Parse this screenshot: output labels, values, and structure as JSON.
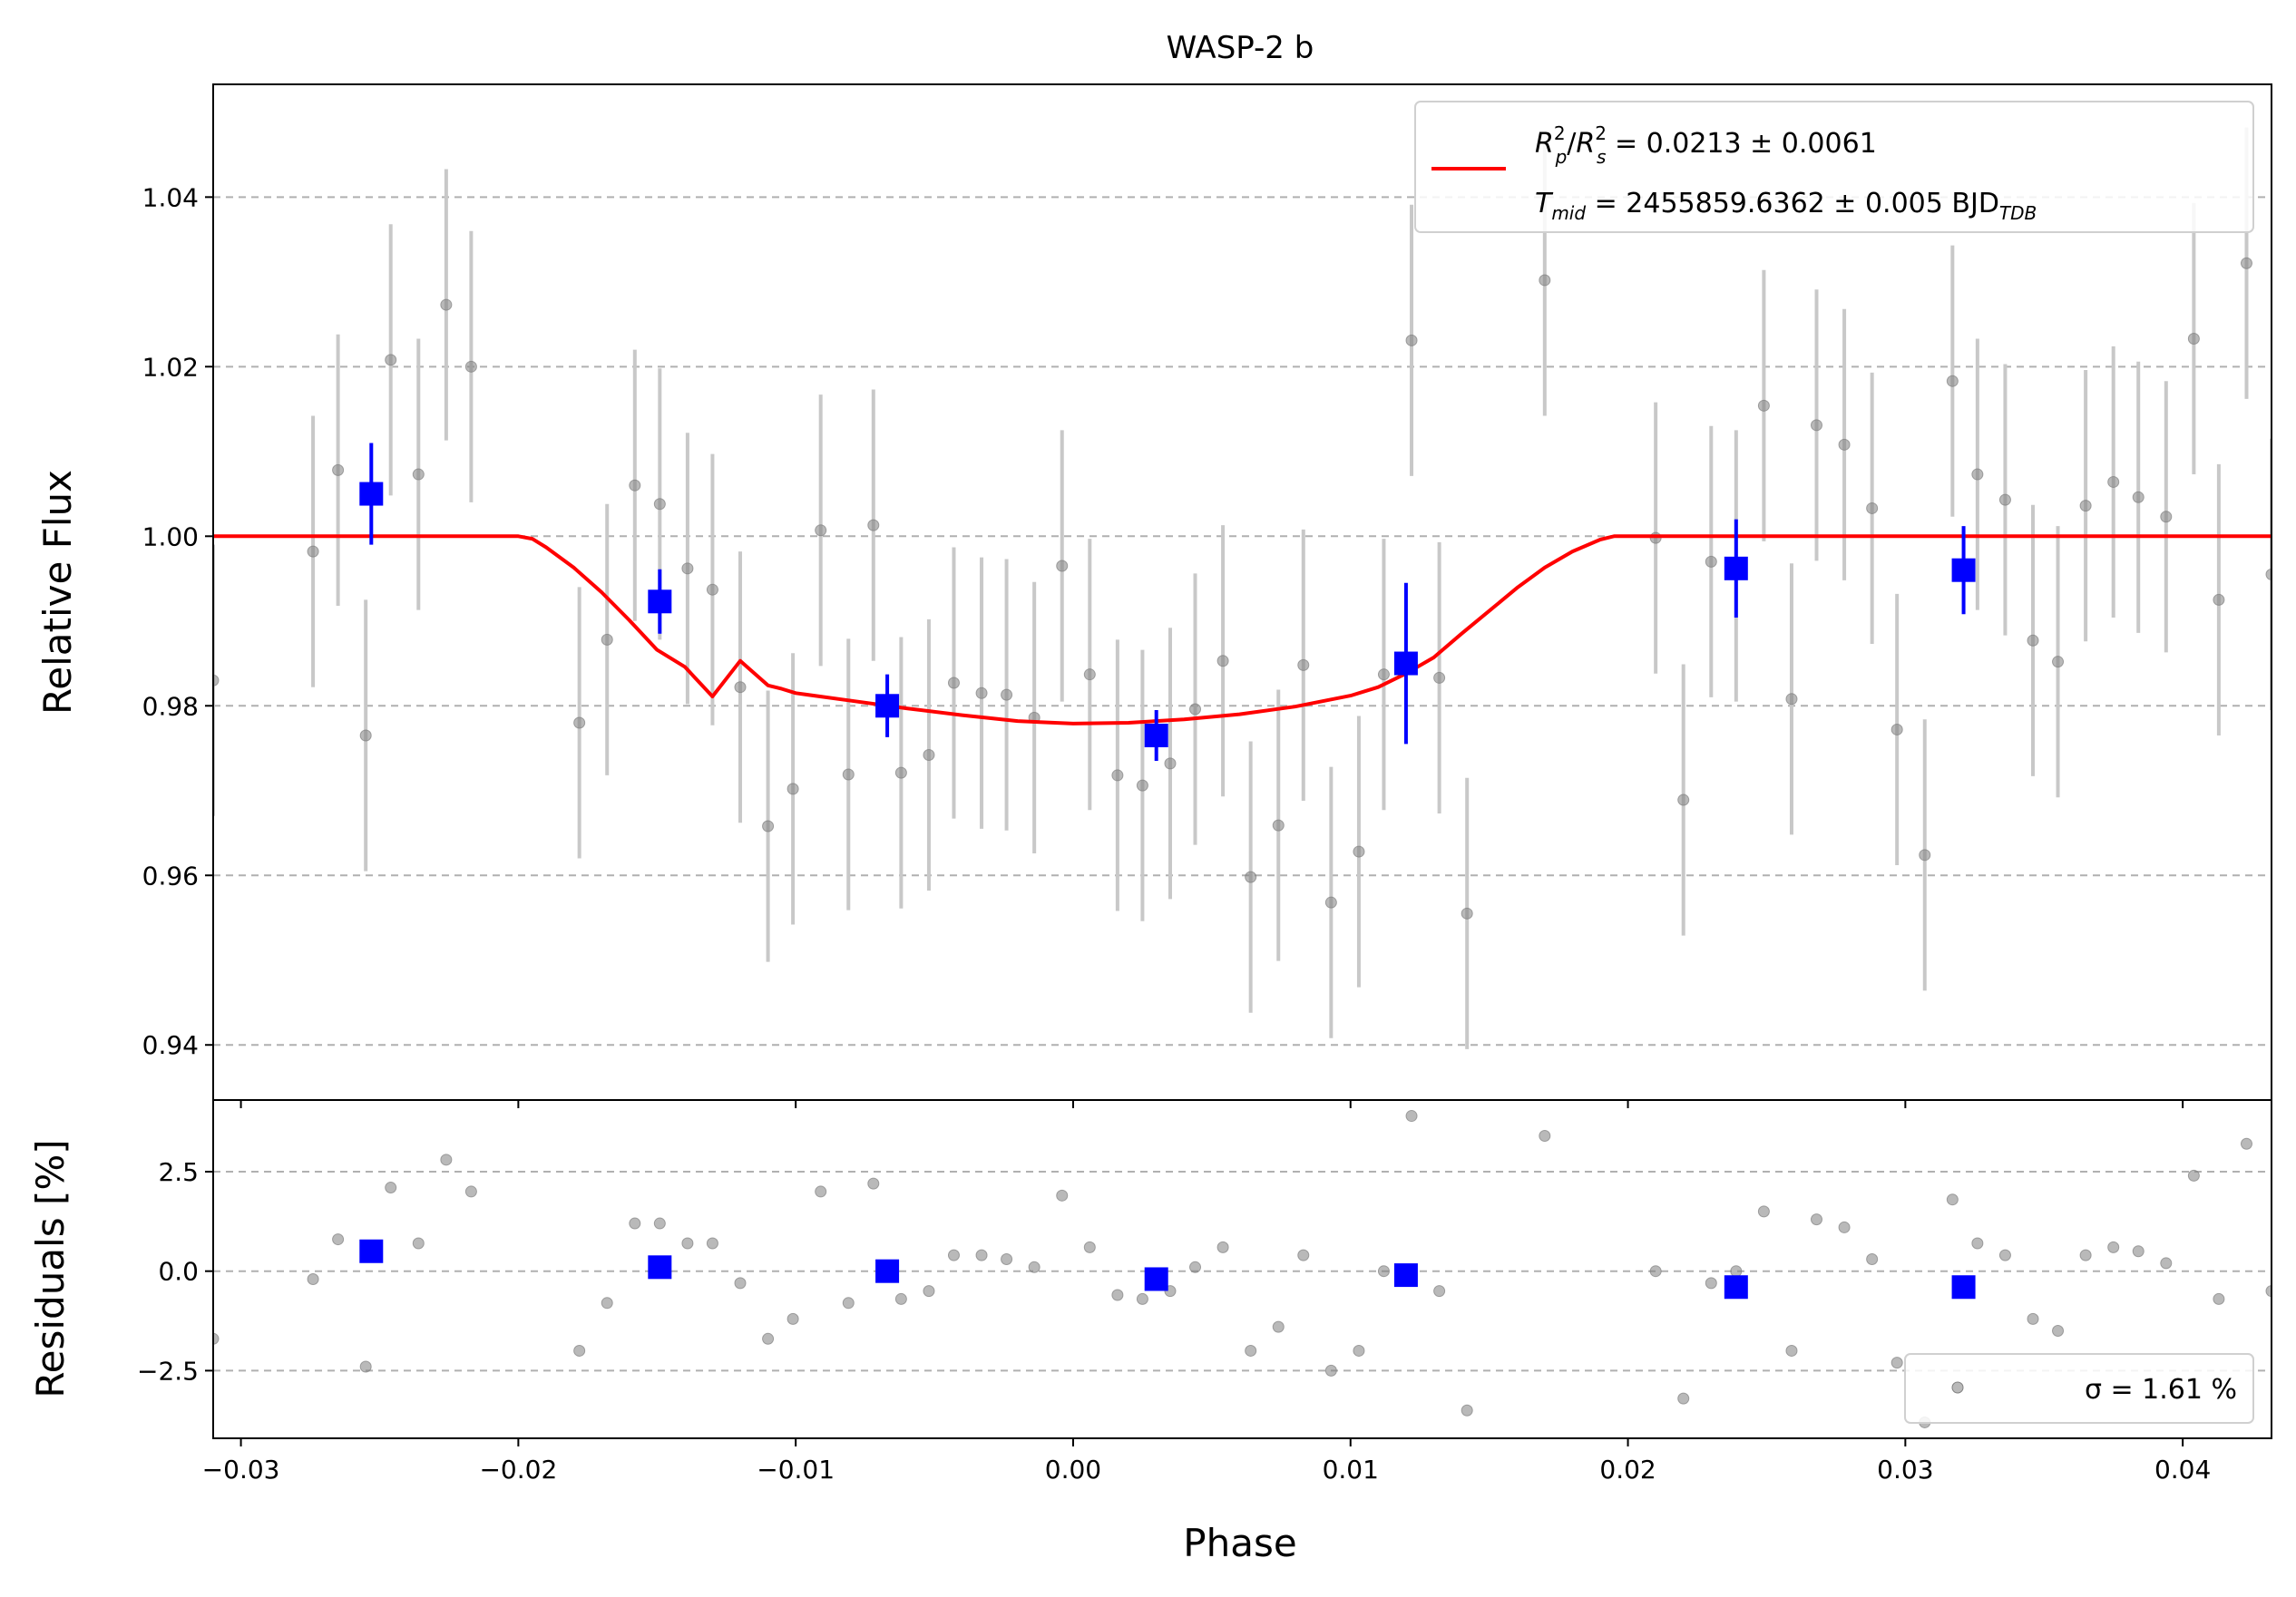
{
  "chart_data": {
    "type": "scatter",
    "title": "WASP-2 b",
    "xlabel": "Phase",
    "xlim": [
      -0.031,
      0.0432
    ],
    "xticks": [
      -0.03,
      -0.02,
      -0.01,
      0.0,
      0.01,
      0.02,
      0.03,
      0.04
    ],
    "xtick_labels": [
      "−0.03",
      "−0.02",
      "−0.01",
      "0.00",
      "0.01",
      "0.02",
      "0.03",
      "0.04"
    ],
    "grid": true,
    "colors": {
      "raw": "#808080",
      "errorbar": "#c8c8c8",
      "binned": "#0000ff",
      "model": "#ff0000",
      "grid": "#b0b0b0"
    },
    "top_panel": {
      "ylabel": "Relative Flux",
      "ylim": [
        0.9335,
        1.0533
      ],
      "yticks": [
        0.94,
        0.96,
        0.98,
        1.0,
        1.02,
        1.04
      ],
      "ytick_labels": [
        "0.94",
        "0.96",
        "0.98",
        "1.00",
        "1.02",
        "1.04"
      ],
      "raw_errorbar": 0.016,
      "raw_data": [
        [
          -0.031,
          0.983
        ],
        [
          -0.0274,
          0.9982
        ],
        [
          -0.0265,
          1.0078
        ],
        [
          -0.0255,
          0.9765
        ],
        [
          -0.0246,
          1.0208
        ],
        [
          -0.0236,
          1.0073
        ],
        [
          -0.0226,
          1.0273
        ],
        [
          -0.0217,
          1.02
        ],
        [
          -0.0178,
          0.978
        ],
        [
          -0.0168,
          0.9878
        ],
        [
          -0.0158,
          1.006
        ],
        [
          -0.0149,
          1.0038
        ],
        [
          -0.0139,
          0.9962
        ],
        [
          -0.013,
          0.9937
        ],
        [
          -0.012,
          0.9822
        ],
        [
          -0.011,
          0.9658
        ],
        [
          -0.0101,
          0.9702
        ],
        [
          -0.0091,
          1.0007
        ],
        [
          -0.0081,
          0.9719
        ],
        [
          -0.0072,
          1.0013
        ],
        [
          -0.0062,
          0.9721
        ],
        [
          -0.0052,
          0.9742
        ],
        [
          -0.0043,
          0.9827
        ],
        [
          -0.0033,
          0.9815
        ],
        [
          -0.0024,
          0.9813
        ],
        [
          -0.0014,
          0.9786
        ],
        [
          -0.0004,
          0.9965
        ],
        [
          0.0006,
          0.9837
        ],
        [
          0.0016,
          0.9718
        ],
        [
          0.0025,
          0.9706
        ],
        [
          0.0035,
          0.9732
        ],
        [
          0.0044,
          0.9796
        ],
        [
          0.0054,
          0.9853
        ],
        [
          0.0064,
          0.9598
        ],
        [
          0.0074,
          0.9659
        ],
        [
          0.0083,
          0.9848
        ],
        [
          0.0093,
          0.9568
        ],
        [
          0.0103,
          0.9628
        ],
        [
          0.0112,
          0.9837
        ],
        [
          0.0122,
          1.0231
        ],
        [
          0.0132,
          0.9833
        ],
        [
          0.0142,
          0.9555
        ],
        [
          0.017,
          1.0302
        ],
        [
          0.021,
          0.9998
        ],
        [
          0.022,
          0.9689
        ],
        [
          0.023,
          0.997
        ],
        [
          0.0239,
          0.9965
        ],
        [
          0.0249,
          1.0154
        ],
        [
          0.0259,
          0.9808
        ],
        [
          0.0268,
          1.0131
        ],
        [
          0.0278,
          1.0108
        ],
        [
          0.0288,
          1.0033
        ],
        [
          0.0297,
          0.9772
        ],
        [
          0.0307,
          0.9624
        ],
        [
          0.0317,
          1.0183
        ],
        [
          0.0326,
          1.0073
        ],
        [
          0.0336,
          1.0043
        ],
        [
          0.0346,
          0.9877
        ],
        [
          0.0355,
          0.9852
        ],
        [
          0.0365,
          1.0036
        ],
        [
          0.0375,
          1.0064
        ],
        [
          0.0384,
          1.0046
        ],
        [
          0.0394,
          1.0023
        ],
        [
          0.0404,
          1.0233
        ],
        [
          0.0413,
          0.9925
        ],
        [
          0.0423,
          1.0322
        ],
        [
          0.0432,
          0.9955
        ]
      ],
      "binned_data": [
        [
          -0.0253,
          1.005,
          0.006
        ],
        [
          -0.0149,
          0.9923,
          0.0038
        ],
        [
          -0.0067,
          0.98,
          0.0037
        ],
        [
          0.003,
          0.9765,
          0.003
        ],
        [
          0.012,
          0.985,
          0.0095
        ],
        [
          0.0239,
          0.9962,
          0.0058
        ],
        [
          0.0321,
          0.996,
          0.0052
        ]
      ],
      "model": {
        "name_line1": "R_p^2/R_s^2 = 0.0213 ± 0.0061",
        "name_line2": "T_mid = 2455859.6362 ± 0.005 BJD_TDB",
        "baseline": 1.0,
        "points": [
          [
            -0.031,
            1.0
          ],
          [
            -0.02,
            1.0
          ],
          [
            -0.0195,
            0.9997
          ],
          [
            -0.019,
            0.9987
          ],
          [
            -0.018,
            0.9963
          ],
          [
            -0.017,
            0.9934
          ],
          [
            -0.016,
            0.9901
          ],
          [
            -0.015,
            0.9866
          ],
          [
            -0.014,
            0.9846
          ],
          [
            -0.013,
            0.9811
          ],
          [
            -0.012,
            0.9853
          ],
          [
            -0.011,
            0.9824
          ],
          [
            -0.0105,
            0.982
          ],
          [
            -0.01,
            0.9815
          ],
          [
            -0.008,
            0.9806
          ],
          [
            -0.006,
            0.9797
          ],
          [
            -0.004,
            0.9789
          ],
          [
            -0.002,
            0.9782
          ],
          [
            0.0,
            0.9779
          ],
          [
            0.002,
            0.978
          ],
          [
            0.004,
            0.9784
          ],
          [
            0.006,
            0.979
          ],
          [
            0.008,
            0.9799
          ],
          [
            0.01,
            0.9812
          ],
          [
            0.011,
            0.9822
          ],
          [
            0.012,
            0.9838
          ],
          [
            0.013,
            0.9857
          ],
          [
            0.014,
            0.9885
          ],
          [
            0.015,
            0.9912
          ],
          [
            0.016,
            0.9939
          ],
          [
            0.017,
            0.9963
          ],
          [
            0.018,
            0.9982
          ],
          [
            0.019,
            0.9996
          ],
          [
            0.0195,
            1.0
          ],
          [
            0.0432,
            1.0
          ]
        ]
      }
    },
    "bottom_panel": {
      "ylabel": "Residuals [%]",
      "ylim": [
        -4.2,
        4.3
      ],
      "yticks": [
        -2.5,
        0.0,
        2.5
      ],
      "ytick_labels": [
        "−2.5",
        "0.0",
        "2.5"
      ],
      "sigma_label": "σ = 1.61 %",
      "raw_residuals": [
        [
          -0.031,
          -1.7
        ],
        [
          -0.0274,
          -0.2
        ],
        [
          -0.0265,
          0.8
        ],
        [
          -0.0255,
          -2.4
        ],
        [
          -0.0246,
          2.1
        ],
        [
          -0.0236,
          0.7
        ],
        [
          -0.0226,
          2.8
        ],
        [
          -0.0217,
          2.0
        ],
        [
          -0.0178,
          -2.0
        ],
        [
          -0.0168,
          -0.8
        ],
        [
          -0.0158,
          1.2
        ],
        [
          -0.0149,
          1.2
        ],
        [
          -0.0139,
          0.7
        ],
        [
          -0.013,
          0.7
        ],
        [
          -0.012,
          -0.3
        ],
        [
          -0.011,
          -1.7
        ],
        [
          -0.0101,
          -1.2
        ],
        [
          -0.0091,
          2.0
        ],
        [
          -0.0081,
          -0.8
        ],
        [
          -0.0072,
          2.2
        ],
        [
          -0.0062,
          -0.7
        ],
        [
          -0.0052,
          -0.5
        ],
        [
          -0.0043,
          0.4
        ],
        [
          -0.0033,
          0.4
        ],
        [
          -0.0024,
          0.3
        ],
        [
          -0.0014,
          0.1
        ],
        [
          -0.0004,
          1.9
        ],
        [
          0.0006,
          0.6
        ],
        [
          0.0016,
          -0.6
        ],
        [
          0.0025,
          -0.7
        ],
        [
          0.0035,
          -0.5
        ],
        [
          0.0044,
          0.1
        ],
        [
          0.0054,
          0.6
        ],
        [
          0.0064,
          -2.0
        ],
        [
          0.0074,
          -1.4
        ],
        [
          0.0083,
          0.4
        ],
        [
          0.0093,
          -2.5
        ],
        [
          0.0103,
          -2.0
        ],
        [
          0.0112,
          0.0
        ],
        [
          0.0122,
          3.9
        ],
        [
          0.0132,
          -0.5
        ],
        [
          0.0142,
          -3.5
        ],
        [
          0.017,
          3.4
        ],
        [
          0.021,
          0.0
        ],
        [
          0.022,
          -3.2
        ],
        [
          0.023,
          -0.3
        ],
        [
          0.0239,
          -0.0
        ],
        [
          0.0249,
          1.5
        ],
        [
          0.0259,
          -2.0
        ],
        [
          0.0268,
          1.3
        ],
        [
          0.0278,
          1.1
        ],
        [
          0.0288,
          0.3
        ],
        [
          0.0297,
          -2.3
        ],
        [
          0.0307,
          -3.8
        ],
        [
          0.0317,
          1.8
        ],
        [
          0.0326,
          0.7
        ],
        [
          0.0336,
          0.4
        ],
        [
          0.0346,
          -1.2
        ],
        [
          0.0355,
          -1.5
        ],
        [
          0.0365,
          0.4
        ],
        [
          0.0375,
          0.6
        ],
        [
          0.0384,
          0.5
        ],
        [
          0.0394,
          0.2
        ],
        [
          0.0404,
          2.4
        ],
        [
          0.0413,
          -0.7
        ],
        [
          0.0423,
          3.2
        ],
        [
          0.0432,
          -0.5
        ]
      ],
      "binned_residuals": [
        [
          -0.0253,
          0.5
        ],
        [
          -0.0149,
          0.1
        ],
        [
          -0.0067,
          0.0
        ],
        [
          0.003,
          -0.2
        ],
        [
          0.012,
          -0.1
        ],
        [
          0.0239,
          -0.4
        ],
        [
          0.0321,
          -0.4
        ]
      ]
    }
  }
}
